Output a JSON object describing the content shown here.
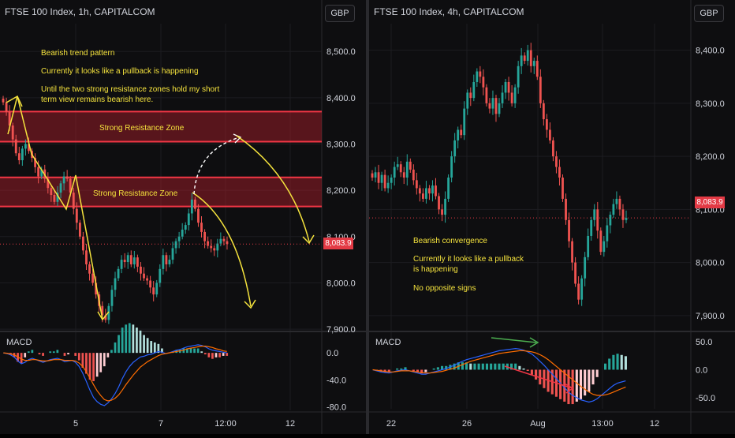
{
  "left": {
    "title": "FTSE 100 Index, 1h, CAPITALCOM",
    "currency": "GBP",
    "price_label": "8,083.9",
    "macd_label": "MACD",
    "notes": [
      "Bearish trend pattern",
      "Currently it looks like a pullback is happening",
      "Until the two strong resistance zones hold my short",
      "term view remains bearish here."
    ],
    "zone_labels": [
      "Strong Resistance Zone",
      "Strong Resistance Zone"
    ],
    "y_ticks": [
      "8,500.0",
      "8,400.0",
      "8,300.0",
      "8,200.0",
      "8,100.0",
      "8,000.0",
      "7,900.0"
    ],
    "macd_ticks": [
      "0.0",
      "-40.0",
      "-80.0"
    ],
    "x_ticks": [
      "5",
      "7",
      "12:00",
      "12"
    ]
  },
  "right": {
    "title": "FTSE 100 Index, 4h, CAPITALCOM",
    "currency": "GBP",
    "price_label": "8,083.9",
    "macd_label": "MACD",
    "notes": [
      "Bearish convergence",
      "Currently it looks like a pullback",
      "is happening",
      "No opposite signs"
    ],
    "y_ticks": [
      "8,400.0",
      "8,300.0",
      "8,200.0",
      "8,100.0",
      "8,000.0",
      "7,900.0"
    ],
    "macd_ticks": [
      "50.0",
      "0.0",
      "-50.0"
    ],
    "x_ticks": [
      "22",
      "26",
      "Aug",
      "13:00",
      "12"
    ]
  },
  "chart_data": [
    {
      "type": "candlestick",
      "title": "FTSE 100 Index, 1h, CAPITALCOM",
      "x_ticks": [
        "5",
        "7",
        "12:00",
        "12"
      ],
      "y_ticks": [
        8500,
        8400,
        8300,
        8200,
        8100,
        8000,
        7900
      ],
      "ylim": [
        7895,
        8560
      ],
      "last_price": 8083.9,
      "resistance_zones": [
        [
          8305,
          8370
        ],
        [
          8165,
          8228
        ]
      ],
      "close": [
        8390,
        8370,
        8340,
        8310,
        8280,
        8265,
        8290,
        8300,
        8285,
        8270,
        8250,
        8230,
        8245,
        8225,
        8205,
        8190,
        8175,
        8195,
        8215,
        8230,
        8225,
        8195,
        8160,
        8130,
        8100,
        8070,
        8040,
        8020,
        8000,
        7975,
        7950,
        7930,
        7920,
        7950,
        7985,
        8010,
        8030,
        8050,
        8045,
        8060,
        8040,
        8055,
        8035,
        8020,
        8010,
        8005,
        7990,
        7975,
        8000,
        8030,
        8060,
        8040,
        8050,
        8075,
        8090,
        8100,
        8115,
        8125,
        8150,
        8180,
        8160,
        8130,
        8110,
        8090,
        8080,
        8075,
        8070,
        8085,
        8095,
        8090,
        8083.9
      ],
      "macd": [
        0,
        -1,
        -3,
        -6,
        -12,
        -16,
        -14,
        -10,
        -8,
        -10,
        -12,
        -14,
        -12,
        -10,
        -9,
        -8,
        -10,
        -13,
        -12,
        -11,
        -14,
        -20,
        -30,
        -42,
        -55,
        -66,
        -72,
        -76,
        -78,
        -74,
        -68,
        -60,
        -50,
        -38,
        -28,
        -20,
        -14,
        -10,
        -6,
        -5,
        -3,
        -2,
        0,
        2,
        1,
        -1,
        0,
        2,
        4,
        5,
        7,
        9,
        10,
        11,
        12,
        11,
        9,
        6,
        4,
        3,
        2,
        1,
        0
      ],
      "signal": [
        0,
        -0.5,
        -1.5,
        -3,
        -6,
        -9,
        -11,
        -11,
        -10,
        -10,
        -11,
        -12,
        -12,
        -11,
        -10,
        -10,
        -10,
        -11,
        -11,
        -11,
        -12,
        -15,
        -20,
        -28,
        -37,
        -47,
        -56,
        -63,
        -69,
        -71,
        -70,
        -67,
        -62,
        -55,
        -47,
        -40,
        -33,
        -27,
        -21,
        -17,
        -13,
        -10,
        -7,
        -4,
        -2,
        -1,
        0,
        1,
        2,
        3,
        4,
        6,
        7,
        8,
        9,
        10,
        10,
        9,
        8,
        6,
        5,
        3,
        2
      ]
    },
    {
      "type": "candlestick",
      "title": "FTSE 100 Index, 4h, CAPITALCOM",
      "x_ticks": [
        "22",
        "26",
        "Aug",
        "13:00",
        "12"
      ],
      "y_ticks": [
        8400,
        8300,
        8200,
        8100,
        8000,
        7900
      ],
      "ylim": [
        7870,
        8450
      ],
      "last_price": 8083.9,
      "close": [
        8160,
        8170,
        8150,
        8165,
        8140,
        8150,
        8160,
        8180,
        8185,
        8170,
        8160,
        8190,
        8175,
        8155,
        8140,
        8130,
        8120,
        8140,
        8130,
        8145,
        8125,
        8100,
        8090,
        8120,
        8160,
        8200,
        8230,
        8250,
        8240,
        8290,
        8320,
        8310,
        8340,
        8360,
        8350,
        8330,
        8300,
        8290,
        8310,
        8280,
        8300,
        8320,
        8340,
        8320,
        8300,
        8330,
        8370,
        8390,
        8380,
        8400,
        8370,
        8380,
        8350,
        8300,
        8270,
        8250,
        8230,
        8200,
        8180,
        8160,
        8120,
        8080,
        8040,
        8000,
        7960,
        7930,
        7970,
        8010,
        8050,
        8080,
        8100,
        8060,
        8020,
        8040,
        8070,
        8090,
        8110,
        8120,
        8100,
        8080,
        8083.9
      ],
      "macd": [
        0,
        -2,
        -4,
        -5,
        -6,
        -4,
        -2,
        -1,
        0,
        -2,
        -4,
        -6,
        -8,
        -8,
        -6,
        -4,
        -2,
        0,
        2,
        5,
        8,
        12,
        15,
        18,
        20,
        22,
        24,
        26,
        28,
        30,
        32,
        34,
        35,
        36,
        37,
        38,
        37,
        35,
        32,
        28,
        22,
        15,
        8,
        0,
        -8,
        -16,
        -24,
        -32,
        -40,
        -46,
        -50,
        -54,
        -56,
        -58,
        -56,
        -52,
        -46,
        -40,
        -34,
        -28,
        -24,
        -22,
        -20
      ],
      "signal": [
        0,
        -1,
        -2,
        -3,
        -4,
        -4,
        -3,
        -2,
        -2,
        -2,
        -3,
        -4,
        -5,
        -6,
        -6,
        -5,
        -4,
        -3,
        -1,
        1,
        3,
        6,
        9,
        12,
        15,
        17,
        19,
        21,
        23,
        25,
        27,
        29,
        30,
        31,
        32,
        33,
        34,
        34,
        33,
        32,
        30,
        27,
        23,
        18,
        12,
        6,
        0,
        -6,
        -12,
        -18,
        -24,
        -30,
        -35,
        -40,
        -44,
        -46,
        -46,
        -45,
        -43,
        -40,
        -37,
        -34,
        -31
      ]
    }
  ]
}
